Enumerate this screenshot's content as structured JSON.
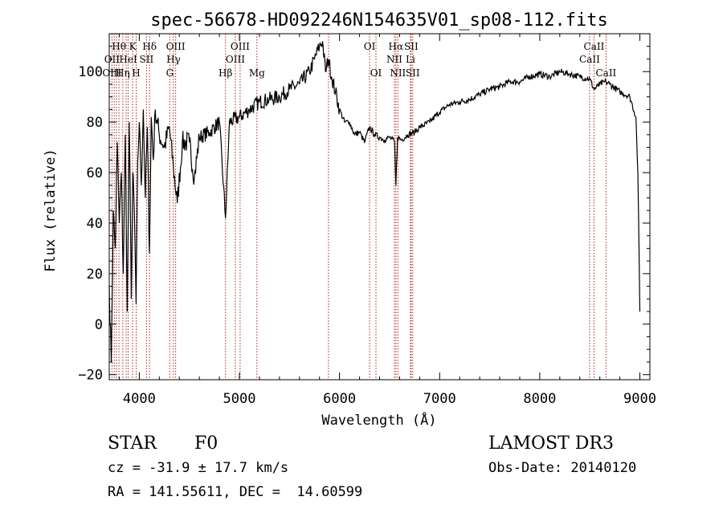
{
  "chart_data": {
    "type": "line",
    "title": "spec-56678-HD092246N154635V01_sp08-112.fits",
    "xlabel": "Wavelength (Å)",
    "ylabel": "Flux (relative)",
    "xlim": [
      3700,
      9100
    ],
    "ylim": [
      -22,
      115
    ],
    "xticks": [
      4000,
      5000,
      6000,
      7000,
      8000,
      9000
    ],
    "yticks": [
      -20,
      0,
      20,
      40,
      60,
      80,
      100
    ],
    "series": [
      {
        "name": "spectrum",
        "x": [
          3700,
          3720,
          3740,
          3760,
          3780,
          3800,
          3820,
          3840,
          3860,
          3880,
          3900,
          3920,
          3935,
          3950,
          3968,
          3985,
          4000,
          4020,
          4040,
          4060,
          4080,
          4101,
          4120,
          4140,
          4160,
          4200,
          4250,
          4300,
          4340,
          4380,
          4430,
          4500,
          4550,
          4600,
          4700,
          4800,
          4861,
          4900,
          5000,
          5100,
          5200,
          5300,
          5400,
          5500,
          5600,
          5700,
          5750,
          5800,
          5830,
          5860,
          5890,
          5920,
          5960,
          6000,
          6050,
          6100,
          6150,
          6200,
          6250,
          6300,
          6350,
          6400,
          6450,
          6500,
          6550,
          6563,
          6580,
          6620,
          6680,
          6750,
          6800,
          6900,
          7000,
          7100,
          7200,
          7300,
          7400,
          7500,
          7600,
          7700,
          7800,
          7900,
          8000,
          8100,
          8200,
          8300,
          8400,
          8500,
          8542,
          8600,
          8662,
          8700,
          8800,
          8900,
          8960,
          8980,
          9000
        ],
        "y": [
          15,
          -15,
          45,
          30,
          72,
          40,
          60,
          20,
          75,
          5,
          80,
          10,
          60,
          45,
          8,
          65,
          80,
          55,
          85,
          50,
          78,
          28,
          82,
          65,
          85,
          75,
          70,
          78,
          62,
          48,
          72,
          72,
          58,
          74,
          76,
          80,
          42,
          80,
          82,
          85,
          88,
          89,
          90,
          93,
          95,
          100,
          105,
          110,
          112,
          100,
          105,
          98,
          92,
          85,
          80,
          80,
          75,
          76,
          72,
          78,
          75,
          74,
          73,
          74,
          72,
          55,
          74,
          73,
          75,
          76,
          78,
          80,
          84,
          87,
          88,
          89,
          91,
          93,
          94,
          96,
          96,
          98,
          99,
          98,
          100,
          99,
          98,
          97,
          93,
          95,
          96,
          95,
          92,
          90,
          82,
          60,
          5
        ]
      }
    ],
    "line_labels": [
      {
        "text": "Hθ",
        "wl": 3797,
        "row": 1
      },
      {
        "text": "OII",
        "wl": 3727,
        "row": 2
      },
      {
        "text": "OIII",
        "wl": 3727,
        "row": 3
      },
      {
        "text": "K",
        "wl": 3934,
        "row": 1
      },
      {
        "text": "HeI",
        "wl": 3889,
        "row": 2
      },
      {
        "text": "Hη",
        "wl": 3835,
        "row": 3
      },
      {
        "text": "H",
        "wl": 3969,
        "row": 3
      },
      {
        "text": "Hδ",
        "wl": 4102,
        "row": 1
      },
      {
        "text": "SII",
        "wl": 4072,
        "row": 2
      },
      {
        "text": "OIII",
        "wl": 4363,
        "row": 1
      },
      {
        "text": "Hγ",
        "wl": 4341,
        "row": 2
      },
      {
        "text": "G",
        "wl": 4305,
        "row": 3
      },
      {
        "text": "Hβ",
        "wl": 4861,
        "row": 3
      },
      {
        "text": "OIII",
        "wl": 5007,
        "row": 1
      },
      {
        "text": "OIII",
        "wl": 4959,
        "row": 2
      },
      {
        "text": "Mg",
        "wl": 5175,
        "row": 3
      },
      {
        "text": "OI",
        "wl": 6300,
        "row": 1
      },
      {
        "text": "OI",
        "wl": 6364,
        "row": 3
      },
      {
        "text": "Hα",
        "wl": 6563,
        "row": 1
      },
      {
        "text": "SII",
        "wl": 6716,
        "row": 1
      },
      {
        "text": "NII",
        "wl": 6548,
        "row": 2
      },
      {
        "text": "Li",
        "wl": 6708,
        "row": 2
      },
      {
        "text": "NII",
        "wl": 6583,
        "row": 3
      },
      {
        "text": "SII",
        "wl": 6731,
        "row": 3
      },
      {
        "text": "CaII",
        "wl": 8542,
        "row": 1
      },
      {
        "text": "CaII",
        "wl": 8498,
        "row": 2
      },
      {
        "text": "CaII",
        "wl": 8662,
        "row": 3
      }
    ],
    "line_markers": [
      3727,
      3750,
      3771,
      3797,
      3835,
      3869,
      3889,
      3934,
      3969,
      4072,
      4102,
      4305,
      4341,
      4363,
      4861,
      4959,
      5007,
      5175,
      5890,
      6300,
      6364,
      6548,
      6563,
      6583,
      6708,
      6716,
      6731,
      8498,
      8542,
      8662
    ]
  },
  "info": {
    "class": "STAR",
    "subclass": "F0",
    "survey": "LAMOST DR3",
    "cz": "cz = -31.9 ± 17.7 km/s",
    "obs_date": "Obs-Date: 20140120",
    "coords": "RA = 141.55611, DEC =  14.60599"
  },
  "colors": {
    "marker": "#b22222",
    "ink": "#000000"
  }
}
